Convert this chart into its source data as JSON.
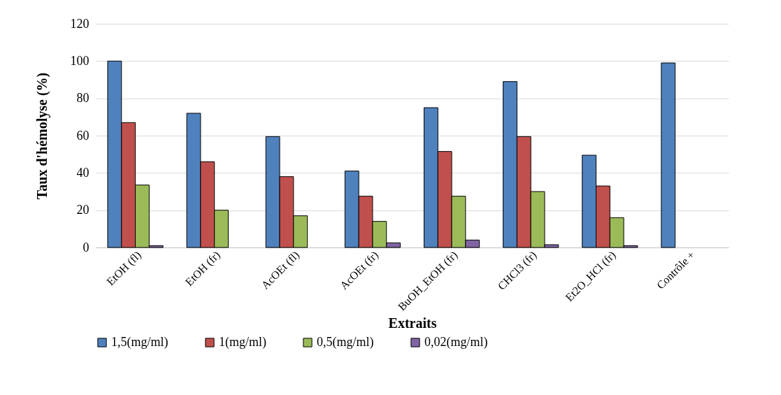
{
  "chart_data": {
    "type": "bar",
    "xlabel": "Extraits",
    "ylabel": "Taux d'hémolyse (%)",
    "categories": [
      "EtOH (fl)",
      "EtOH (fr)",
      "AcOEt (fl)",
      "AcOEt (fr)",
      "BuOH_EtOH (fr)",
      "CHCl3 (fr)",
      "Et2O_HCl (fr)",
      "Contrôle +"
    ],
    "series": [
      {
        "name": "1,5(mg/ml)",
        "color": "#4f81bd",
        "values": [
          100,
          72,
          59.5,
          41,
          75,
          89,
          49.5,
          99
        ]
      },
      {
        "name": "1(mg/ml)",
        "color": "#c0504d",
        "values": [
          67,
          46,
          38,
          27.5,
          51.5,
          59.5,
          33,
          null
        ]
      },
      {
        "name": "0,5(mg/ml)",
        "color": "#9bbb59",
        "values": [
          33.5,
          20,
          17,
          14,
          27.5,
          30,
          16,
          null
        ]
      },
      {
        "name": "0,02(mg/ml)",
        "color": "#8064a2",
        "values": [
          1,
          null,
          null,
          2.5,
          4,
          1.5,
          1,
          null
        ]
      }
    ],
    "ylim": [
      0,
      120
    ],
    "yticks": [
      0,
      20,
      40,
      60,
      80,
      100,
      120
    ],
    "grid": "y",
    "legend": "bottom"
  }
}
